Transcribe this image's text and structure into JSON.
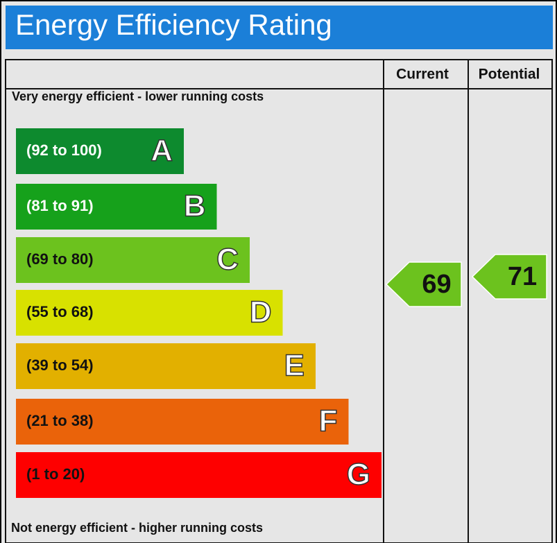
{
  "title": "Energy Efficiency Rating",
  "columns": [
    "Current",
    "Potential"
  ],
  "top_note": "Very energy efficient - lower running costs",
  "bottom_note": "Not energy efficient - higher running costs",
  "bands": [
    {
      "range": "(92 to 100)",
      "letter": "A",
      "color": "#0d8a2e",
      "text_color": "#ffffff"
    },
    {
      "range": "(81 to 91)",
      "letter": "B",
      "color": "#16a11b",
      "text_color": "#ffffff"
    },
    {
      "range": "(69 to 80)",
      "letter": "C",
      "color": "#6cc21e",
      "text_color": "#111111"
    },
    {
      "range": "(55 to 68)",
      "letter": "D",
      "color": "#d8e100",
      "text_color": "#111111"
    },
    {
      "range": "(39 to 54)",
      "letter": "E",
      "color": "#e2b000",
      "text_color": "#111111"
    },
    {
      "range": "(21 to 38)",
      "letter": "F",
      "color": "#ea630a",
      "text_color": "#111111"
    },
    {
      "range": "(1 to 20)",
      "letter": "G",
      "color": "#fe0000",
      "text_color": "#111111"
    }
  ],
  "current": {
    "value": 69,
    "color": "#6cc21e"
  },
  "potential": {
    "value": 71,
    "color": "#6cc21e"
  }
}
